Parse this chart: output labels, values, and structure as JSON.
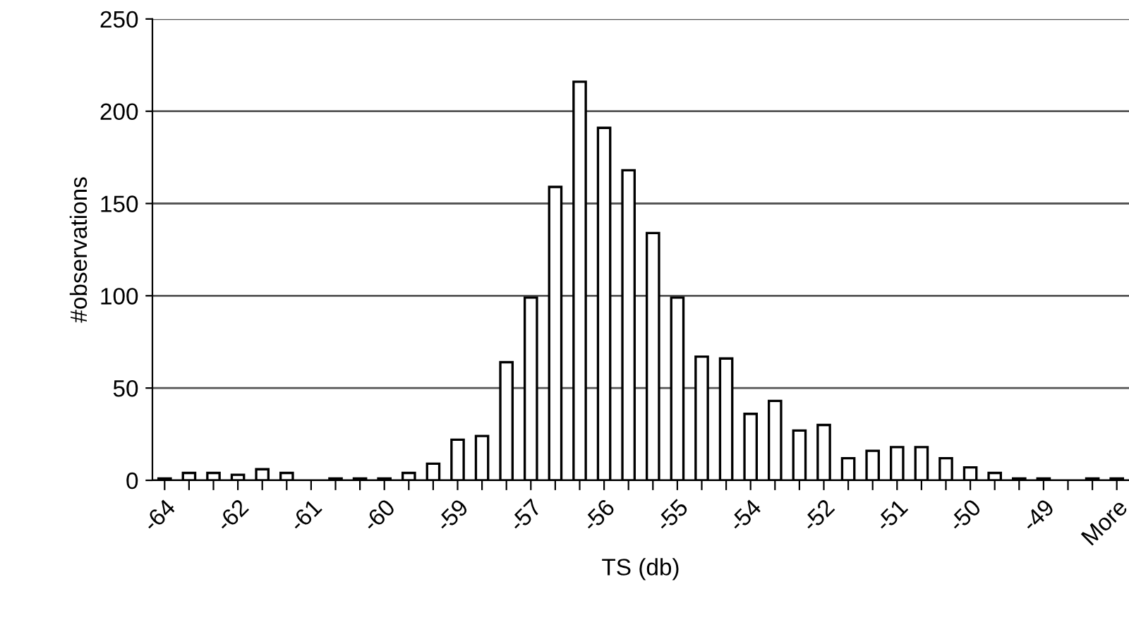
{
  "chart_data": {
    "type": "bar",
    "xlabel": "TS (db)",
    "ylabel": "#observations",
    "categories": [
      "-64",
      null,
      null,
      "-62",
      null,
      null,
      "-61",
      null,
      null,
      "-60",
      null,
      null,
      "-59",
      null,
      null,
      "-57",
      null,
      null,
      "-56",
      null,
      null,
      "-55",
      null,
      null,
      "-54",
      null,
      null,
      "-52",
      null,
      null,
      "-51",
      null,
      null,
      "-50",
      null,
      null,
      "-49",
      null,
      null,
      "More"
    ],
    "values": [
      1,
      4,
      4,
      3,
      6,
      4,
      0,
      1,
      1,
      1,
      4,
      9,
      22,
      24,
      64,
      99,
      159,
      216,
      191,
      168,
      134,
      99,
      67,
      66,
      36,
      43,
      27,
      30,
      12,
      16,
      18,
      18,
      12,
      7,
      4,
      1,
      1,
      0,
      1,
      1
    ],
    "color": "#ffffff",
    "ylim": [
      0,
      250
    ],
    "yticks": [
      0,
      50,
      100,
      150,
      200,
      250
    ],
    "grid": "y",
    "legend": false
  }
}
